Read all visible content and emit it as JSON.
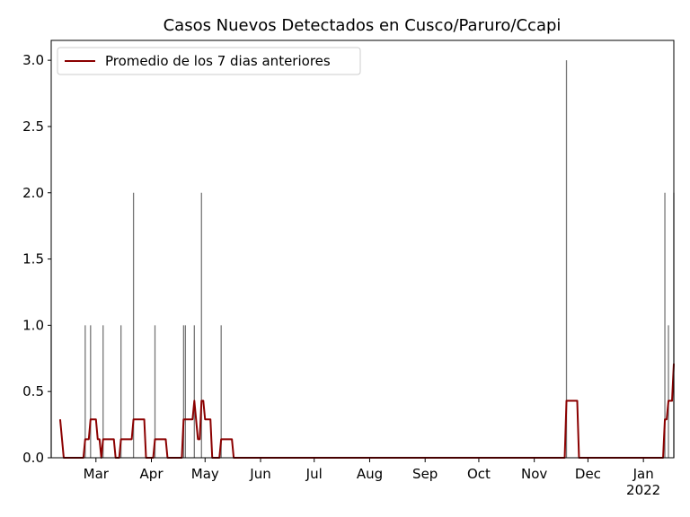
{
  "chart_data": {
    "type": "bar",
    "title": "Casos Nuevos Detectados en Cusco/Paruro/Ccapi",
    "xlim": [
      "2021-02-04",
      "2022-01-18"
    ],
    "xticks": [
      {
        "value": "2021-03-01",
        "label": "Mar"
      },
      {
        "value": "2021-04-01",
        "label": "Apr"
      },
      {
        "value": "2021-05-01",
        "label": "May"
      },
      {
        "value": "2021-06-01",
        "label": "Jun"
      },
      {
        "value": "2021-07-01",
        "label": "Jul"
      },
      {
        "value": "2021-08-01",
        "label": "Aug"
      },
      {
        "value": "2021-09-01",
        "label": "Sep"
      },
      {
        "value": "2021-10-01",
        "label": "Oct"
      },
      {
        "value": "2021-11-01",
        "label": "Nov"
      },
      {
        "value": "2021-12-01",
        "label": "Dec"
      },
      {
        "value": "2022-01-01",
        "label": "Jan\n2022"
      }
    ],
    "ylim": [
      0,
      3.15
    ],
    "yticks": [
      {
        "value": 0,
        "label": "0.0"
      },
      {
        "value": 0.5,
        "label": "0.5"
      },
      {
        "value": 1,
        "label": "1.0"
      },
      {
        "value": 1.5,
        "label": "1.5"
      },
      {
        "value": 2,
        "label": "2.0"
      },
      {
        "value": 2.5,
        "label": "2.5"
      },
      {
        "value": 3,
        "label": "3.0"
      }
    ],
    "legend": "upper left",
    "series": [
      {
        "type": "bar",
        "color": "#777777",
        "x": [
          "2021-02-04",
          "2021-02-23",
          "2021-02-26",
          "2021-03-05",
          "2021-03-15",
          "2021-03-22",
          "2021-04-03",
          "2021-04-19",
          "2021-04-20",
          "2021-04-25",
          "2021-04-29",
          "2021-05-10",
          "2021-11-19",
          "2022-01-13",
          "2022-01-15",
          "2022-01-18"
        ],
        "values": [
          1,
          1,
          1,
          1,
          1,
          2,
          1,
          1,
          1,
          1,
          2,
          1,
          3,
          2,
          1,
          2
        ]
      },
      {
        "type": "line",
        "name": "Promedio de los 7 dias anteriores",
        "color": "#8b0000",
        "x": [
          "2021-02-09",
          "2021-02-11",
          "2021-02-22",
          "2021-02-23",
          "2021-02-25",
          "2021-02-26",
          "2021-03-01",
          "2021-03-02",
          "2021-03-03",
          "2021-03-04",
          "2021-03-05",
          "2021-03-11",
          "2021-03-12",
          "2021-03-14",
          "2021-03-15",
          "2021-03-21",
          "2021-03-22",
          "2021-03-28",
          "2021-03-29",
          "2021-04-02",
          "2021-04-03",
          "2021-04-09",
          "2021-04-10",
          "2021-04-18",
          "2021-04-19",
          "2021-04-24",
          "2021-04-25",
          "2021-04-27",
          "2021-04-28",
          "2021-04-29",
          "2021-04-30",
          "2021-05-01",
          "2021-05-04",
          "2021-05-05",
          "2021-05-09",
          "2021-05-10",
          "2021-05-16",
          "2021-05-17",
          "2021-11-18",
          "2021-11-19",
          "2021-11-25",
          "2021-11-26",
          "2022-01-12",
          "2022-01-13",
          "2022-01-14",
          "2022-01-15",
          "2022-01-17",
          "2022-01-18"
        ],
        "values": [
          0.29,
          0,
          0,
          0.14,
          0.14,
          0.29,
          0.29,
          0.14,
          0.14,
          0,
          0.14,
          0.14,
          0,
          0,
          0.14,
          0.14,
          0.29,
          0.29,
          0,
          0,
          0.14,
          0.14,
          0,
          0,
          0.29,
          0.29,
          0.43,
          0.14,
          0.14,
          0.43,
          0.43,
          0.29,
          0.29,
          0,
          0,
          0.14,
          0.14,
          0,
          0,
          0.43,
          0.43,
          0,
          0,
          0.29,
          0.29,
          0.43,
          0.43,
          0.71
        ]
      }
    ]
  }
}
